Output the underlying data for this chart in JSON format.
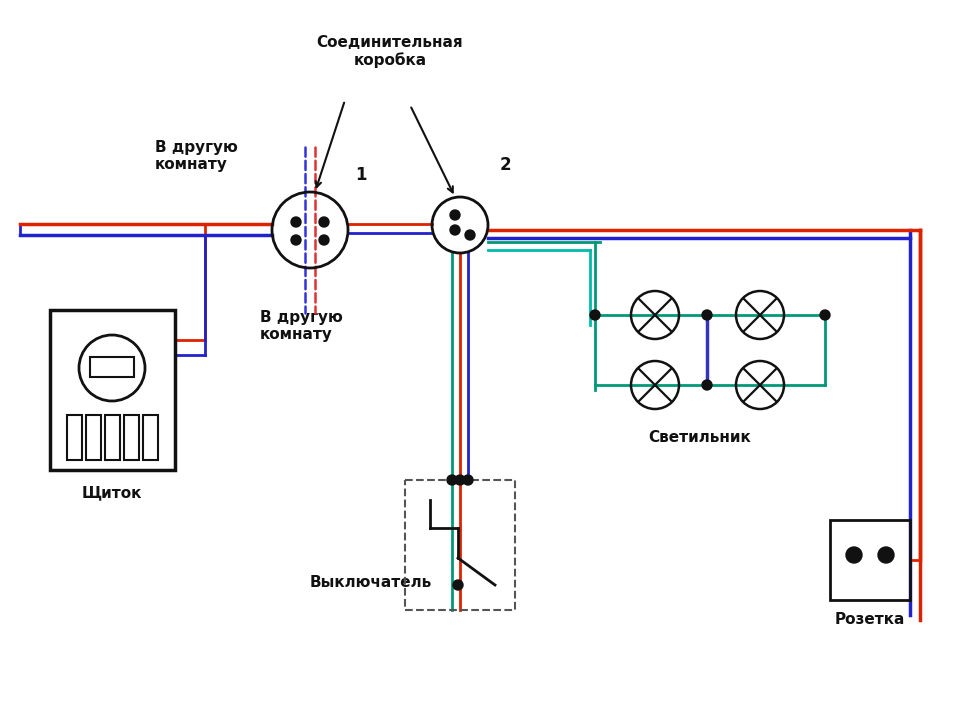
{
  "bg_color": "#ffffff",
  "wire_red": "#dd2200",
  "wire_blue": "#2222cc",
  "wire_green": "#009977",
  "wire_teal": "#00bbaa",
  "wire_darkblue": "#3333bb",
  "node_color": "#111111",
  "component_color": "#111111",
  "dashed_red": "#dd3333",
  "dashed_blue": "#3333dd",
  "label_щиток": "Щиток",
  "label_коробка": "Соединительная\nкоробка",
  "label_светильник": "Светильник",
  "label_выключатель": "Выключатель",
  "label_розетка": "Розетка",
  "label_комната1": "В другую\nкомнату",
  "label_комната2": "В другую\nкомнату",
  "label_1": "1",
  "label_2": "2"
}
